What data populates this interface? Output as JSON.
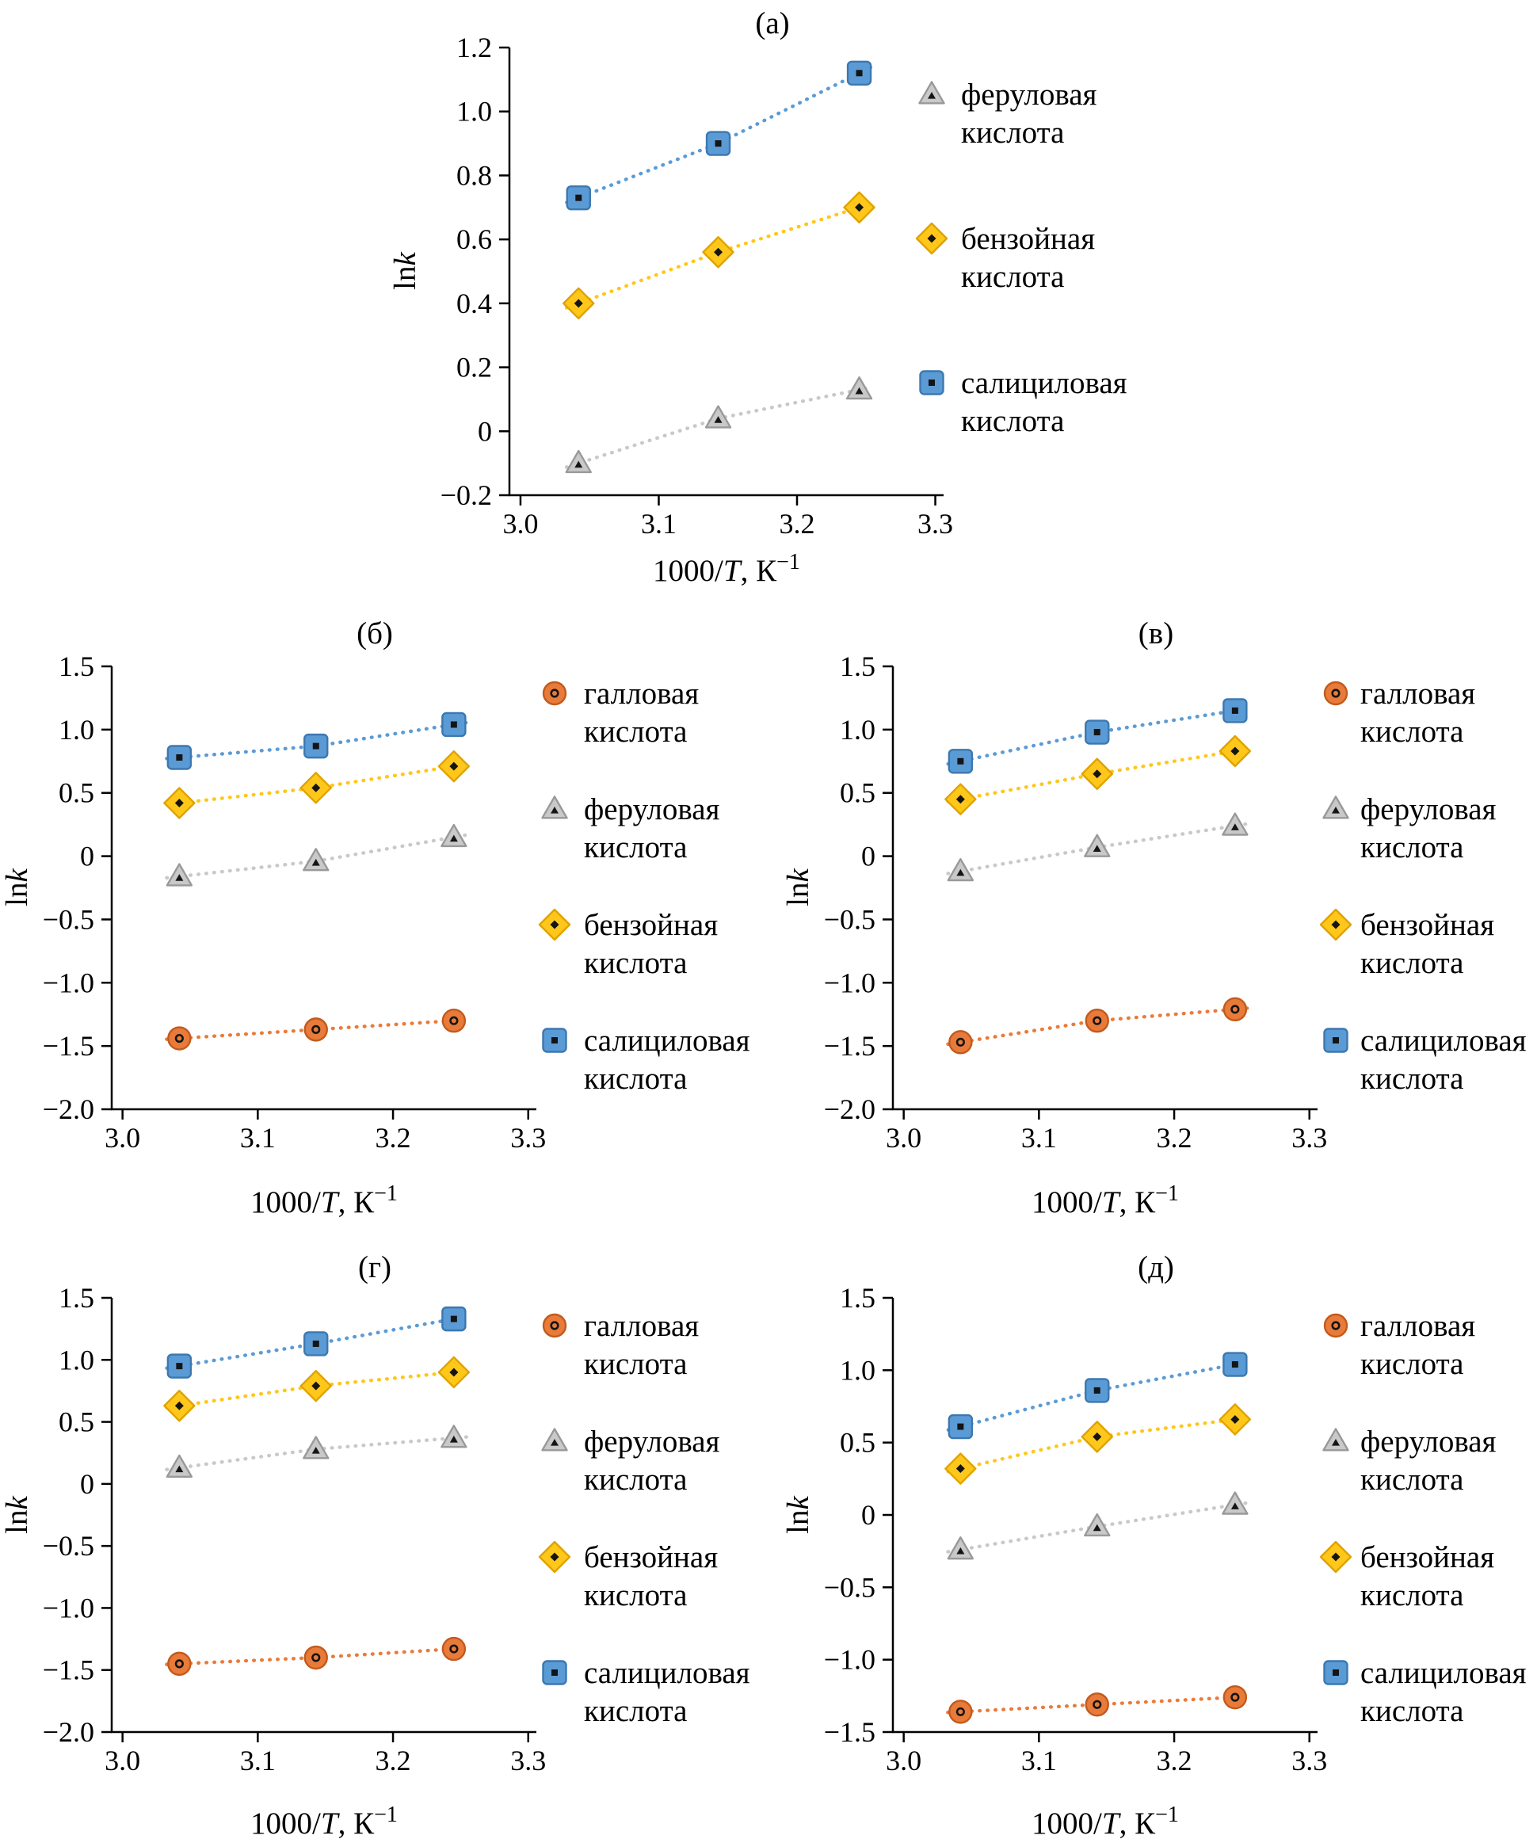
{
  "figure": {
    "background": "#ffffff",
    "text_color": "#000000",
    "axis_color": "#000000",
    "inner_glyph_color": "#151515"
  },
  "palette": {
    "галловая кислота": {
      "marker": "circle",
      "color": "#e97b3a",
      "edge": "#c25a1d"
    },
    "феруловая кислота": {
      "marker": "triangle",
      "color": "#c9c9c9",
      "edge": "#999999"
    },
    "бензойная кислота": {
      "marker": "diamond",
      "color": "#ffc71a",
      "edge": "#dfa300"
    },
    "салициловая кислота": {
      "marker": "square",
      "color": "#5b9bd5",
      "edge": "#3c78b0"
    }
  },
  "axis_labels": {
    "xlabel_segments": [
      {
        "t": "1000/"
      },
      {
        "t": "T",
        "i": true
      },
      {
        "t": ", К"
      },
      {
        "t": "−1",
        "sup": true
      }
    ],
    "ylabel_segments": [
      {
        "t": "ln"
      },
      {
        "t": "k",
        "i": true
      }
    ]
  },
  "chart_data": [
    {
      "id": "a",
      "title": "(а)",
      "type": "line",
      "xlabel": "1000/T, К−1",
      "ylabel": "lnk",
      "xlim": [
        2.992,
        3.306
      ],
      "ylim": [
        -0.2,
        1.2
      ],
      "grid": false,
      "legend_position": "right",
      "xticks": [
        {
          "v": 3.0,
          "label": "3.0"
        },
        {
          "v": 3.1,
          "label": "3.1"
        },
        {
          "v": 3.2,
          "label": "3.2"
        },
        {
          "v": 3.3,
          "label": "3.3"
        }
      ],
      "yticks": [
        {
          "v": 1.2,
          "label": "1.2"
        },
        {
          "v": 1.0,
          "label": "1.0"
        },
        {
          "v": 0.8,
          "label": "0.8"
        },
        {
          "v": 0.6,
          "label": "0.6"
        },
        {
          "v": 0.4,
          "label": "0.4"
        },
        {
          "v": 0.2,
          "label": "0.2"
        },
        {
          "v": 0,
          "label": "0"
        },
        {
          "v": -0.2,
          "label": "−0.2"
        }
      ],
      "x": [
        3.042,
        3.143,
        3.245
      ],
      "series": [
        {
          "name": "салициловая кислота",
          "values": [
            0.73,
            0.9,
            1.12
          ]
        },
        {
          "name": "бензойная кислота",
          "values": [
            0.4,
            0.56,
            0.7
          ]
        },
        {
          "name": "феруловая кислота",
          "values": [
            -0.1,
            0.04,
            0.13
          ]
        }
      ],
      "legend": [
        "феруловая кислота",
        "бензойная кислота",
        "салициловая кислота"
      ]
    },
    {
      "id": "b",
      "title": "(б)",
      "type": "line",
      "xlabel": "1000/T, К−1",
      "ylabel": "lnk",
      "xlim": [
        2.992,
        3.306
      ],
      "ylim": [
        -2.0,
        1.5
      ],
      "grid": false,
      "legend_position": "right",
      "xticks": [
        {
          "v": 3.0,
          "label": "3.0"
        },
        {
          "v": 3.1,
          "label": "3.1"
        },
        {
          "v": 3.2,
          "label": "3.2"
        },
        {
          "v": 3.3,
          "label": "3.3"
        }
      ],
      "yticks": [
        {
          "v": 1.5,
          "label": "1.5"
        },
        {
          "v": 1.0,
          "label": "1.0"
        },
        {
          "v": 0.5,
          "label": "0.5"
        },
        {
          "v": 0,
          "label": "0"
        },
        {
          "v": -0.5,
          "label": "−0.5"
        },
        {
          "v": -1.0,
          "label": "−1.0"
        },
        {
          "v": -1.5,
          "label": "−1.5"
        },
        {
          "v": -2.0,
          "label": "−2.0"
        }
      ],
      "x": [
        3.042,
        3.143,
        3.245
      ],
      "series": [
        {
          "name": "салициловая кислота",
          "values": [
            0.78,
            0.87,
            1.04
          ]
        },
        {
          "name": "бензойная кислота",
          "values": [
            0.42,
            0.54,
            0.71
          ]
        },
        {
          "name": "феруловая кислота",
          "values": [
            -0.16,
            -0.04,
            0.15
          ]
        },
        {
          "name": "галловая кислота",
          "values": [
            -1.44,
            -1.37,
            -1.3
          ]
        }
      ],
      "legend": [
        "галловая кислота",
        "феруловая кислота",
        "бензойная кислота",
        "салициловая кислота"
      ]
    },
    {
      "id": "v",
      "title": "(в)",
      "type": "line",
      "xlabel": "1000/T, К−1",
      "ylabel": "lnk",
      "xlim": [
        2.992,
        3.306
      ],
      "ylim": [
        -2.0,
        1.5
      ],
      "grid": false,
      "legend_position": "right",
      "xticks": [
        {
          "v": 3.0,
          "label": "3.0"
        },
        {
          "v": 3.1,
          "label": "3.1"
        },
        {
          "v": 3.2,
          "label": "3.2"
        },
        {
          "v": 3.3,
          "label": "3.3"
        }
      ],
      "yticks": [
        {
          "v": 1.5,
          "label": "1.5"
        },
        {
          "v": 1.0,
          "label": "1.0"
        },
        {
          "v": 0.5,
          "label": "0.5"
        },
        {
          "v": 0,
          "label": "0"
        },
        {
          "v": -0.5,
          "label": "−0.5"
        },
        {
          "v": -1.0,
          "label": "−1.0"
        },
        {
          "v": -1.5,
          "label": "−1.5"
        },
        {
          "v": -2.0,
          "label": "−2.0"
        }
      ],
      "x": [
        3.042,
        3.143,
        3.245
      ],
      "series": [
        {
          "name": "салициловая кислота",
          "values": [
            0.75,
            0.98,
            1.15
          ]
        },
        {
          "name": "бензойная кислота",
          "values": [
            0.45,
            0.65,
            0.83
          ]
        },
        {
          "name": "феруловая кислота",
          "values": [
            -0.12,
            0.07,
            0.24
          ]
        },
        {
          "name": "галловая кислота",
          "values": [
            -1.47,
            -1.3,
            -1.21
          ]
        }
      ],
      "legend": [
        "галловая кислота",
        "феруловая кислота",
        "бензойная кислота",
        "салициловая кислота"
      ]
    },
    {
      "id": "g",
      "title": "(г)",
      "type": "line",
      "xlabel": "1000/T, К−1",
      "ylabel": "lnk",
      "xlim": [
        2.992,
        3.306
      ],
      "ylim": [
        -2.0,
        1.5
      ],
      "grid": false,
      "legend_position": "right",
      "xticks": [
        {
          "v": 3.0,
          "label": "3.0"
        },
        {
          "v": 3.1,
          "label": "3.1"
        },
        {
          "v": 3.2,
          "label": "3.2"
        },
        {
          "v": 3.3,
          "label": "3.3"
        }
      ],
      "yticks": [
        {
          "v": 1.5,
          "label": "1.5"
        },
        {
          "v": 1.0,
          "label": "1.0"
        },
        {
          "v": 0.5,
          "label": "0.5"
        },
        {
          "v": 0,
          "label": "0"
        },
        {
          "v": -0.5,
          "label": "−0.5"
        },
        {
          "v": -1.0,
          "label": "−1.0"
        },
        {
          "v": -1.5,
          "label": "−1.5"
        },
        {
          "v": -2.0,
          "label": "−2.0"
        }
      ],
      "x": [
        3.042,
        3.143,
        3.245
      ],
      "series": [
        {
          "name": "салициловая кислота",
          "values": [
            0.95,
            1.13,
            1.33
          ]
        },
        {
          "name": "бензойная кислота",
          "values": [
            0.63,
            0.79,
            0.9
          ]
        },
        {
          "name": "феруловая кислота",
          "values": [
            0.13,
            0.28,
            0.37
          ]
        },
        {
          "name": "галловая кислота",
          "values": [
            -1.45,
            -1.4,
            -1.33
          ]
        }
      ],
      "legend": [
        "галловая кислота",
        "феруловая кислота",
        "бензойная кислота",
        "салициловая кислота"
      ]
    },
    {
      "id": "d",
      "title": "(д)",
      "type": "line",
      "xlabel": "1000/T, К−1",
      "ylabel": "lnk",
      "xlim": [
        2.992,
        3.306
      ],
      "ylim": [
        -1.5,
        1.5
      ],
      "grid": false,
      "legend_position": "right",
      "xticks": [
        {
          "v": 3.0,
          "label": "3.0"
        },
        {
          "v": 3.1,
          "label": "3.1"
        },
        {
          "v": 3.2,
          "label": "3.2"
        },
        {
          "v": 3.3,
          "label": "3.3"
        }
      ],
      "yticks": [
        {
          "v": 1.5,
          "label": "1.5"
        },
        {
          "v": 1.0,
          "label": "1.0"
        },
        {
          "v": 0.5,
          "label": "0.5"
        },
        {
          "v": 0,
          "label": "0"
        },
        {
          "v": -0.5,
          "label": "−0.5"
        },
        {
          "v": -1.0,
          "label": "−1.0"
        },
        {
          "v": -1.5,
          "label": "−1.5"
        }
      ],
      "x": [
        3.042,
        3.143,
        3.245
      ],
      "series": [
        {
          "name": "салициловая кислота",
          "values": [
            0.61,
            0.86,
            1.04
          ]
        },
        {
          "name": "бензойная кислота",
          "values": [
            0.32,
            0.54,
            0.66
          ]
        },
        {
          "name": "феруловая кислота",
          "values": [
            -0.24,
            -0.08,
            0.07
          ]
        },
        {
          "name": "галловая кислота",
          "values": [
            -1.36,
            -1.31,
            -1.26
          ]
        }
      ],
      "legend": [
        "галловая кислота",
        "феруловая кислота",
        "бензойная кислота",
        "салициловая кислота"
      ]
    }
  ]
}
